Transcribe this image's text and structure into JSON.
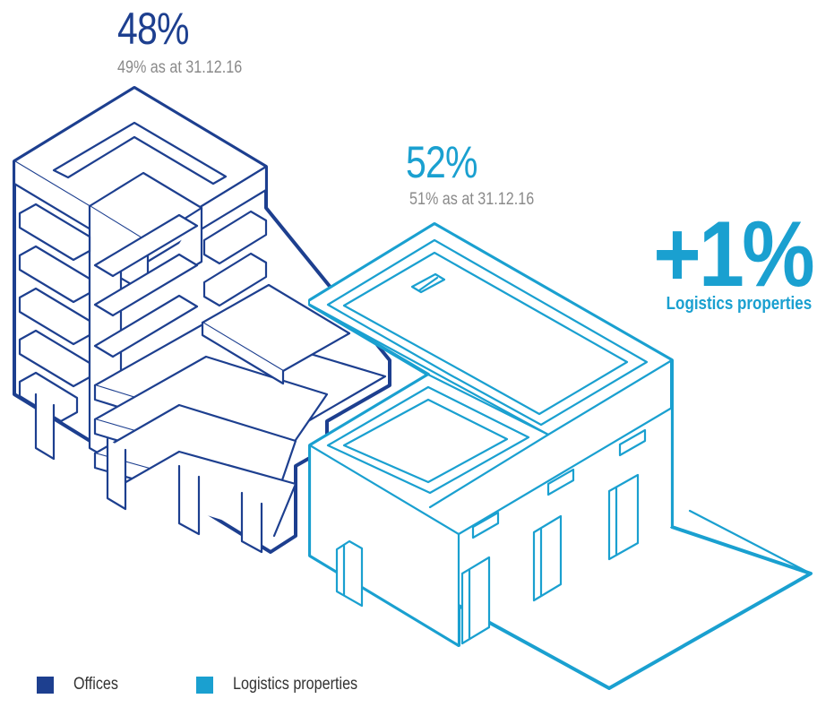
{
  "colors": {
    "offices": "#1d3f8f",
    "logistics": "#1aa0d0",
    "subtext": "#8a8a8a",
    "legend_text": "#333333"
  },
  "chart_data": {
    "type": "pie",
    "categories": [
      "Offices",
      "Logistics properties"
    ],
    "values": [
      48,
      52
    ],
    "previous": {
      "as_at": "31.12.16",
      "values": [
        49,
        51
      ]
    },
    "unit": "%",
    "legend": "bottom-left"
  },
  "labels": {
    "offices_value": "48%",
    "offices_previous": "49% as at 31.12.16",
    "logistics_value": "52%",
    "logistics_previous": "51% as at 31.12.16",
    "change_value": "+1%",
    "change_label": "Logistics properties"
  },
  "legend": {
    "offices": "Offices",
    "logistics": "Logistics properties"
  }
}
